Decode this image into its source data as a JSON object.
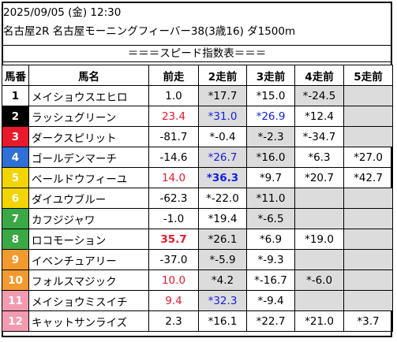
{
  "header": {
    "line1": "2025/09/05 (金) 12:30",
    "line2": "名古屋2R 名古屋モーニングフィーバー38(3歳16) ダ1500m",
    "title": "＝＝＝スピード指数表＝＝＝"
  },
  "columns": [
    "馬番",
    "馬名",
    "前走",
    "2走前",
    "3走前",
    "4走前",
    "5走前"
  ],
  "colors": {
    "red": "#e8192b",
    "blue": "#1520e0",
    "gray": "#dcdcdc"
  },
  "rows": [
    {
      "num": "1",
      "name": "メイショウスエヒロ",
      "bg": "#ffffff",
      "fg": "#000000",
      "cells": [
        {
          "v": "1.0",
          "c": "",
          "b": false,
          "g": false
        },
        {
          "v": "*17.7",
          "c": "",
          "b": false,
          "g": true
        },
        {
          "v": "*15.0",
          "c": "",
          "b": false,
          "g": false
        },
        {
          "v": "*-24.5",
          "c": "",
          "b": false,
          "g": true
        },
        {
          "v": "",
          "c": "",
          "b": false,
          "g": true
        }
      ]
    },
    {
      "num": "2",
      "name": "ラッシュグリーン",
      "bg": "#000000",
      "fg": "#ffffff",
      "cells": [
        {
          "v": "23.4",
          "c": "red",
          "b": false,
          "g": false
        },
        {
          "v": "*31.0",
          "c": "blue",
          "b": false,
          "g": true
        },
        {
          "v": "*26.9",
          "c": "blue",
          "b": false,
          "g": false
        },
        {
          "v": "*12.4",
          "c": "",
          "b": false,
          "g": false
        },
        {
          "v": "",
          "c": "",
          "b": false,
          "g": true
        }
      ]
    },
    {
      "num": "3",
      "name": "ダークスピリット",
      "bg": "#e8192b",
      "fg": "#ffffff",
      "cells": [
        {
          "v": "-81.7",
          "c": "",
          "b": false,
          "g": false
        },
        {
          "v": "*-0.4",
          "c": "",
          "b": false,
          "g": false
        },
        {
          "v": "*-2.3",
          "c": "",
          "b": false,
          "g": true
        },
        {
          "v": "*-34.7",
          "c": "",
          "b": false,
          "g": false
        },
        {
          "v": "",
          "c": "",
          "b": false,
          "g": true
        }
      ]
    },
    {
      "num": "4",
      "name": "ゴールデンマーチ",
      "bg": "#2f6fd6",
      "fg": "#ffffff",
      "cells": [
        {
          "v": "-14.6",
          "c": "",
          "b": false,
          "g": false
        },
        {
          "v": "*26.7",
          "c": "blue",
          "b": false,
          "g": true
        },
        {
          "v": "*16.0",
          "c": "",
          "b": false,
          "g": true
        },
        {
          "v": "*6.3",
          "c": "",
          "b": false,
          "g": false
        },
        {
          "v": "*27.0",
          "c": "",
          "b": false,
          "g": false
        }
      ]
    },
    {
      "num": "5",
      "name": "ベールドウフィーユ",
      "bg": "#f2d400",
      "fg": "#ffffff",
      "cells": [
        {
          "v": "14.0",
          "c": "red",
          "b": false,
          "g": false
        },
        {
          "v": "*36.3",
          "c": "blue",
          "b": true,
          "g": true
        },
        {
          "v": "*9.7",
          "c": "",
          "b": false,
          "g": false
        },
        {
          "v": "*20.7",
          "c": "",
          "b": false,
          "g": false
        },
        {
          "v": "*42.7",
          "c": "",
          "b": false,
          "g": false
        }
      ]
    },
    {
      "num": "6",
      "name": "ダイユウブルー",
      "bg": "#f2d400",
      "fg": "#ffffff",
      "cells": [
        {
          "v": "-62.3",
          "c": "",
          "b": false,
          "g": false
        },
        {
          "v": "*-22.0",
          "c": "",
          "b": false,
          "g": false
        },
        {
          "v": "*11.0",
          "c": "",
          "b": false,
          "g": true
        },
        {
          "v": "",
          "c": "",
          "b": false,
          "g": true
        },
        {
          "v": "",
          "c": "",
          "b": false,
          "g": true
        }
      ]
    },
    {
      "num": "7",
      "name": "カフジジャワ",
      "bg": "#3aa845",
      "fg": "#ffffff",
      "cells": [
        {
          "v": "-1.0",
          "c": "",
          "b": false,
          "g": false
        },
        {
          "v": "*19.4",
          "c": "",
          "b": false,
          "g": false
        },
        {
          "v": "*-6.5",
          "c": "",
          "b": false,
          "g": true
        },
        {
          "v": "",
          "c": "",
          "b": false,
          "g": true
        },
        {
          "v": "",
          "c": "",
          "b": false,
          "g": true
        }
      ]
    },
    {
      "num": "8",
      "name": "ロコモーション",
      "bg": "#3aa845",
      "fg": "#ffffff",
      "cells": [
        {
          "v": "35.7",
          "c": "red",
          "b": true,
          "g": false
        },
        {
          "v": "*26.1",
          "c": "",
          "b": false,
          "g": true
        },
        {
          "v": "*6.9",
          "c": "",
          "b": false,
          "g": false
        },
        {
          "v": "*19.0",
          "c": "",
          "b": false,
          "g": false
        },
        {
          "v": "",
          "c": "",
          "b": false,
          "g": true
        }
      ]
    },
    {
      "num": "9",
      "name": "イベンチュアリー",
      "bg": "#f29a2e",
      "fg": "#ffffff",
      "cells": [
        {
          "v": "-37.0",
          "c": "",
          "b": false,
          "g": false
        },
        {
          "v": "*-5.9",
          "c": "",
          "b": false,
          "g": true
        },
        {
          "v": "*-9.3",
          "c": "",
          "b": false,
          "g": false
        },
        {
          "v": "",
          "c": "",
          "b": false,
          "g": true
        },
        {
          "v": "",
          "c": "",
          "b": false,
          "g": true
        }
      ]
    },
    {
      "num": "10",
      "name": "フォルスマジック",
      "bg": "#f29a2e",
      "fg": "#ffffff",
      "cells": [
        {
          "v": "10.0",
          "c": "red",
          "b": false,
          "g": false
        },
        {
          "v": "*4.2",
          "c": "",
          "b": false,
          "g": true
        },
        {
          "v": "*-16.7",
          "c": "",
          "b": false,
          "g": false
        },
        {
          "v": "*-6.0",
          "c": "",
          "b": false,
          "g": true
        },
        {
          "v": "",
          "c": "",
          "b": false,
          "g": true
        }
      ]
    },
    {
      "num": "11",
      "name": "メイショウミスイチ",
      "bg": "#f39ab0",
      "fg": "#ffffff",
      "cells": [
        {
          "v": "9.4",
          "c": "red",
          "b": false,
          "g": false
        },
        {
          "v": "*32.3",
          "c": "blue",
          "b": false,
          "g": true
        },
        {
          "v": "*-9.4",
          "c": "",
          "b": false,
          "g": false
        },
        {
          "v": "",
          "c": "",
          "b": false,
          "g": true
        },
        {
          "v": "",
          "c": "",
          "b": false,
          "g": true
        }
      ]
    },
    {
      "num": "12",
      "name": "キャットサンライズ",
      "bg": "#f39ab0",
      "fg": "#ffffff",
      "cells": [
        {
          "v": "2.3",
          "c": "",
          "b": false,
          "g": false
        },
        {
          "v": "*16.1",
          "c": "",
          "b": false,
          "g": false
        },
        {
          "v": "*22.7",
          "c": "",
          "b": false,
          "g": false
        },
        {
          "v": "*21.0",
          "c": "",
          "b": false,
          "g": false
        },
        {
          "v": "*3.7",
          "c": "",
          "b": false,
          "g": false
        }
      ]
    }
  ]
}
